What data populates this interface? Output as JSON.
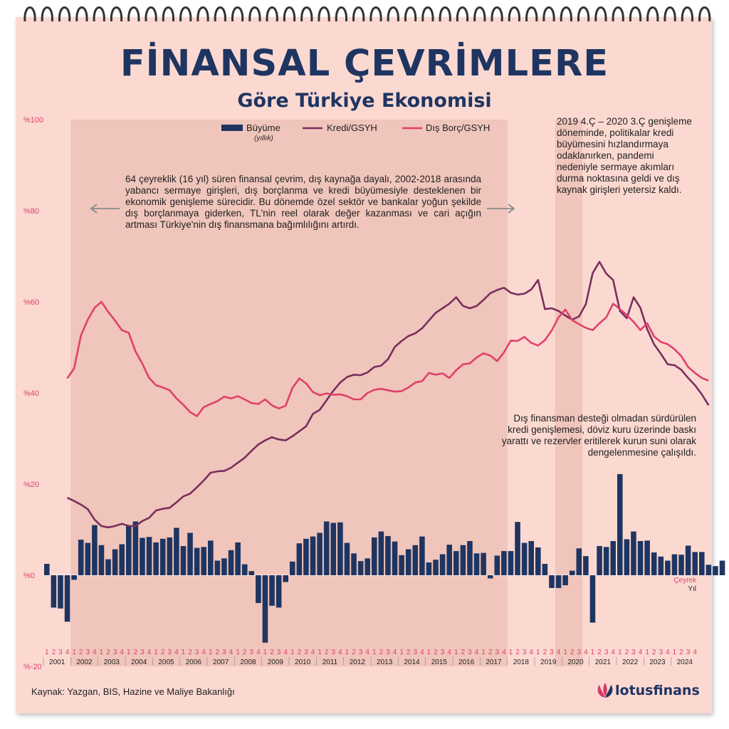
{
  "title": "FİNANSAL ÇEVRİMLERE",
  "subtitle": "Göre Türkiye Ekonomisi",
  "notes": {
    "cycle": "64 çeyreklik (16 yıl) süren finansal çevrim, dış kaynağa dayalı, 2002-2018 arasında yabancı sermaye girişleri, dış borçlanma ve kredi büyümesiyle desteklenen bir ekonomik genişleme sürecidir. Bu dönemde özel sektör ve bankalar yoğun şekilde dış borçlanmaya giderken, TL'nin reel olarak değer kazanması ve cari açığın artması Türkiye'nin dış finansmana bağımlılığını artırdı.",
    "pandemic": "2019 4.Ç – 2020 3.Ç genişleme döneminde, politikalar kredi büyümesini hızlandırmaya odaklanırken, pandemi nedeniyle sermaye akımları durma noktasına geldi ve dış kaynak girişleri yetersiz kaldı.",
    "recent": "Dış finansman desteği olmadan sürdürülen kredi genişlemesi, döviz kuru üzerinde baskı yarattı ve rezervler eritilerek kurun suni olarak dengelenmesine çalışıldı."
  },
  "source": "Kaynak: Yazgan, BIS, Hazine ve Maliye Bakanlığı",
  "logo": {
    "text": "lotusfinans",
    "color": "#1f3561",
    "accent": "#d63a64"
  },
  "colors": {
    "background": "#fbd9d1",
    "shade": "#ecbdb3",
    "bar": "#1f3561",
    "credit": "#7a2e5e",
    "debt": "#e0406a",
    "axis": "#e0406a",
    "title": "#1f3561"
  },
  "chart_data": {
    "type": "bar+line",
    "y_ticks": [
      "%100",
      "%80",
      "%60",
      "%40",
      "%20",
      "%0",
      "%-20"
    ],
    "ylim": [
      -20,
      100
    ],
    "x_axis": {
      "quarter_label": "Çeyrek",
      "year_label": "Yıl",
      "quarters": [
        "1",
        "2",
        "3",
        "4"
      ]
    },
    "years": [
      "2001",
      "2002",
      "2003",
      "2004",
      "2005",
      "2006",
      "2007",
      "2008",
      "2009",
      "2010",
      "2011",
      "2012",
      "2013",
      "2014",
      "2015",
      "2016",
      "2017",
      "2018",
      "2019",
      "2020",
      "2021",
      "2022",
      "2023",
      "2024"
    ],
    "shaded_periods": [
      {
        "start_quarter_index": 4,
        "end_quarter_index": 67
      },
      {
        "start_quarter_index": 75,
        "end_quarter_index": 78
      }
    ],
    "series": [
      {
        "name": "Büyüme",
        "sublabel": "(yıllık)",
        "kind": "bar",
        "color": "#1f3561",
        "values": [
          2.5,
          -7.1,
          -7.3,
          -10.2,
          -1.0,
          7.8,
          7.1,
          11.0,
          6.6,
          3.5,
          5.7,
          6.8,
          11.0,
          11.8,
          8.2,
          8.4,
          7.2,
          8.0,
          8.3,
          10.4,
          6.4,
          9.3,
          6.0,
          6.2,
          7.6,
          3.2,
          3.7,
          5.5,
          7.2,
          2.4,
          0.9,
          -6.1,
          -14.8,
          -6.7,
          -7.1,
          -1.5,
          3.0,
          7.0,
          8.0,
          8.5,
          9.3,
          11.8,
          11.5,
          11.6,
          7.1,
          4.8,
          3.1,
          3.7,
          8.3,
          9.6,
          8.6,
          7.4,
          4.4,
          5.7,
          6.6,
          8.5,
          2.8,
          3.4,
          4.6,
          6.7,
          5.3,
          6.6,
          7.5,
          4.8,
          4.9,
          -0.7,
          4.3,
          5.3,
          5.3,
          11.7,
          7.1,
          7.5,
          6.1,
          2.5,
          -2.8,
          -2.8,
          -2.2,
          1.0,
          5.9,
          4.2,
          -10.4,
          6.4,
          6.2,
          7.5,
          22.2,
          7.9,
          9.6,
          7.5,
          7.6,
          5.0,
          4.1,
          3.2,
          4.6,
          4.5,
          6.5,
          5.1,
          5.1,
          2.3,
          2.0,
          3.2
        ]
      },
      {
        "name": "Kredi/GSYH",
        "kind": "line",
        "color": "#7a2e5e",
        "values": [
          null,
          null,
          null,
          17.0,
          16.3,
          15.5,
          14.5,
          12.2,
          10.8,
          10.5,
          10.8,
          11.3,
          10.8,
          10.8,
          11.9,
          12.6,
          14.2,
          14.6,
          14.8,
          16.0,
          17.3,
          17.9,
          19.3,
          20.8,
          22.5,
          22.8,
          22.9,
          23.6,
          24.7,
          25.8,
          27.3,
          28.7,
          29.6,
          30.3,
          29.8,
          29.6,
          30.5,
          31.6,
          32.7,
          35.4,
          36.3,
          38.4,
          40.5,
          42.3,
          43.5,
          44.0,
          43.9,
          44.5,
          45.7,
          46.0,
          47.4,
          50.1,
          51.4,
          52.5,
          53.1,
          54.2,
          55.9,
          57.6,
          58.6,
          59.6,
          61.0,
          59.1,
          58.6,
          59.1,
          60.4,
          61.9,
          62.6,
          63.1,
          62.0,
          61.6,
          61.8,
          62.7,
          64.8,
          58.4,
          58.6,
          58.0,
          57.0,
          56.1,
          56.8,
          59.5,
          66.3,
          68.8,
          66.2,
          64.8,
          58.0,
          56.4,
          61.0,
          58.7,
          54.0,
          50.7,
          48.6,
          46.3,
          46.1,
          45.1,
          43.3,
          41.7,
          39.7,
          37.3
        ]
      },
      {
        "name": "Dış Borç/GSYH",
        "kind": "line",
        "color": "#e0406a",
        "values": [
          null,
          null,
          null,
          43.2,
          45.4,
          52.6,
          56.1,
          58.7,
          60.0,
          57.8,
          55.9,
          53.8,
          53.2,
          49.1,
          46.4,
          43.3,
          41.7,
          41.2,
          40.6,
          38.8,
          37.4,
          35.8,
          34.9,
          36.9,
          37.6,
          38.2,
          39.2,
          38.8,
          39.3,
          38.6,
          37.8,
          37.6,
          38.6,
          37.3,
          36.6,
          37.2,
          41.1,
          43.2,
          42.1,
          40.2,
          39.5,
          39.9,
          39.6,
          39.7,
          39.3,
          38.6,
          38.6,
          40.0,
          40.7,
          40.9,
          40.6,
          40.3,
          40.4,
          41.2,
          42.3,
          42.6,
          44.4,
          44.0,
          44.3,
          43.3,
          45.0,
          46.3,
          46.5,
          47.8,
          48.7,
          48.2,
          47.0,
          48.9,
          51.5,
          51.4,
          52.3,
          51.0,
          50.4,
          51.6,
          53.7,
          56.6,
          58.3,
          56.0,
          55.1,
          54.3,
          53.8,
          55.3,
          56.6,
          59.6,
          58.4,
          57.1,
          55.6,
          53.8,
          55.3,
          52.4,
          51.2,
          50.7,
          49.6,
          48.1,
          45.7,
          44.4,
          43.3,
          42.7
        ]
      }
    ]
  }
}
